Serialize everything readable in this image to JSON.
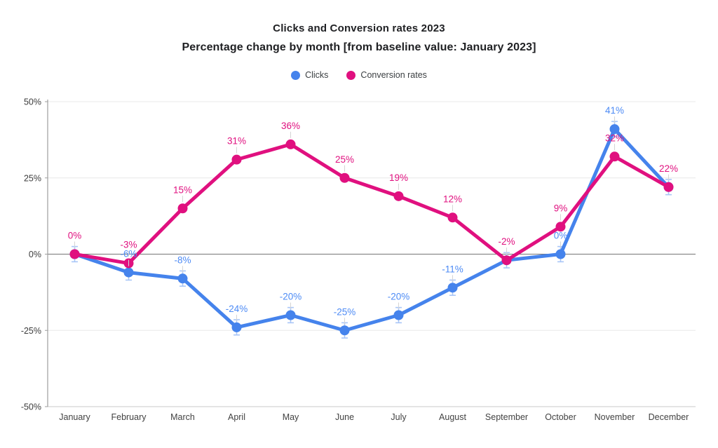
{
  "chart_data": {
    "type": "line",
    "title": "Clicks and Conversion rates 2023",
    "subtitle": "Percentage change by month [from baseline value: January 2023]",
    "categories": [
      "January",
      "February",
      "March",
      "April",
      "May",
      "June",
      "July",
      "August",
      "September",
      "October",
      "November",
      "December"
    ],
    "series": [
      {
        "name": "Clicks",
        "color": "#4583EC",
        "label_color": "#4D8BF5",
        "error_bar_color": "#A9C6F7",
        "error_margin": 2.5,
        "values": [
          0,
          -6,
          -8,
          -24,
          -20,
          -25,
          -20,
          -11,
          -2,
          0,
          41,
          22
        ],
        "point_labels": [
          "",
          "-6%",
          "-8%",
          "-24%",
          "-20%",
          "-25%",
          "-20%",
          "-11%",
          "",
          "0%",
          "41%",
          ""
        ]
      },
      {
        "name": "Conversion rates",
        "color": "#E0107F",
        "label_color": "#E0107F",
        "error_bar_color": "#E6B8D2",
        "error_margin": 0,
        "values": [
          0,
          -3,
          15,
          31,
          36,
          25,
          19,
          12,
          -2,
          9,
          32,
          22
        ],
        "point_labels": [
          "0%",
          "-3%",
          "15%",
          "31%",
          "36%",
          "25%",
          "19%",
          "12%",
          "-2%",
          "9%",
          "32%",
          "22%"
        ]
      }
    ],
    "y_axis": {
      "min": -50,
      "max": 50,
      "tick_values": [
        50,
        25,
        0,
        -25,
        -50
      ],
      "tick_labels": [
        "50%",
        "25%",
        "0%",
        "-25%",
        "-50%"
      ]
    },
    "grid": true,
    "legend_position": "top",
    "colors": {
      "grid_line": "#E8E8E8",
      "zero_line": "#757575",
      "bottom_line": "#C9C9C9",
      "axis_line": "#9E9E9E",
      "tick_text": "#3C3C3C",
      "leader_line": "#D4D4D4"
    }
  }
}
